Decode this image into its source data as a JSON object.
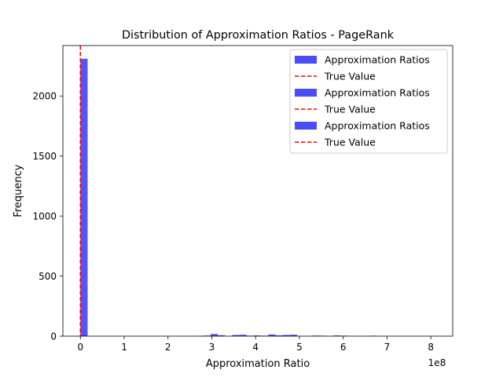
{
  "chart_data": {
    "type": "bar",
    "title": "Distribution of Approximation Ratios - PageRank",
    "xlabel": "Approximation Ratio",
    "ylabel": "Frequency",
    "x_scale_label": "1e8",
    "xlim": [
      -40000000,
      850000000
    ],
    "ylim": [
      0,
      2420
    ],
    "x_tick_values": [
      0,
      100000000,
      200000000,
      300000000,
      400000000,
      500000000,
      600000000,
      700000000,
      800000000
    ],
    "x_tick_labels": [
      "0",
      "1",
      "2",
      "3",
      "4",
      "5",
      "6",
      "7",
      "8"
    ],
    "y_ticks": [
      0,
      500,
      1000,
      1500,
      2000
    ],
    "bin_width": 16500000,
    "bins": [
      {
        "x": 0,
        "count": 2310
      },
      {
        "x": 264000000,
        "count": 3
      },
      {
        "x": 280500000,
        "count": 5
      },
      {
        "x": 297000000,
        "count": 18
      },
      {
        "x": 313500000,
        "count": 8
      },
      {
        "x": 346500000,
        "count": 10
      },
      {
        "x": 363000000,
        "count": 12
      },
      {
        "x": 379500000,
        "count": 4
      },
      {
        "x": 396000000,
        "count": 6
      },
      {
        "x": 412500000,
        "count": 4
      },
      {
        "x": 429000000,
        "count": 14
      },
      {
        "x": 445500000,
        "count": 7
      },
      {
        "x": 462000000,
        "count": 10
      },
      {
        "x": 478500000,
        "count": 12
      },
      {
        "x": 528000000,
        "count": 5
      },
      {
        "x": 544500000,
        "count": 4
      },
      {
        "x": 577500000,
        "count": 6
      },
      {
        "x": 594000000,
        "count": 4
      },
      {
        "x": 660000000,
        "count": 4
      }
    ],
    "true_value": 1,
    "bar_color": "#4a4cf7",
    "line_color": "#ff0000",
    "grid": false,
    "legend_position": "top-right",
    "legend": [
      {
        "label": "Approximation Ratios",
        "kind": "bar"
      },
      {
        "label": "True Value",
        "kind": "line"
      },
      {
        "label": "Approximation Ratios",
        "kind": "bar"
      },
      {
        "label": "True Value",
        "kind": "line"
      },
      {
        "label": "Approximation Ratios",
        "kind": "bar"
      },
      {
        "label": "True Value",
        "kind": "line"
      }
    ]
  }
}
